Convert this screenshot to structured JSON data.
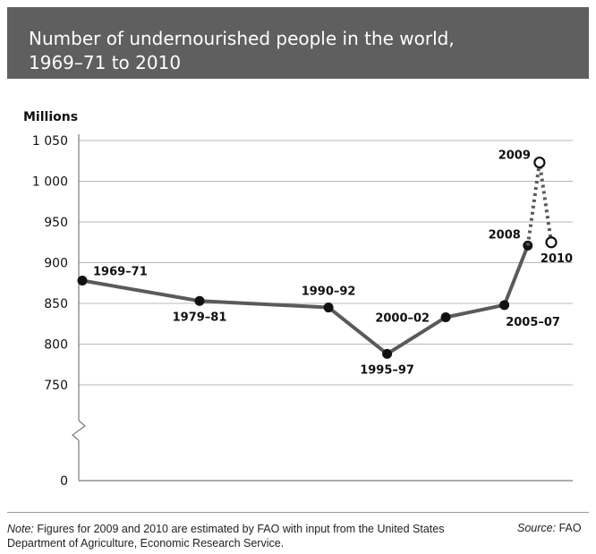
{
  "title": {
    "line1": "Number of undernourished people in the world,",
    "line2": "1969–71 to 2010"
  },
  "footer": {
    "note_lead": "Note:",
    "note_text": "Figures for 2009 and 2010 are estimated by FAO with input from the United States Department of Agriculture, Economic Research Service.",
    "source_lead": "Source:",
    "source_text": "FAO"
  },
  "colors": {
    "title_band": "#5f5f5f",
    "line": "#5a5a5a",
    "marker": "#111111",
    "grid": "#b8b8b8"
  },
  "chart_data": {
    "type": "line",
    "ylabel": "Millions",
    "yticks": [
      "0",
      "750",
      "800",
      "850",
      "900",
      "950",
      "1 000",
      "1 050"
    ],
    "ylim": [
      750,
      1050
    ],
    "axis_break": true,
    "grid": true,
    "series": [
      {
        "style": "solid",
        "points": [
          {
            "label": "1969–71",
            "year": 1970,
            "value": 878
          },
          {
            "label": "1979–81",
            "year": 1980,
            "value": 853
          },
          {
            "label": "1990–92",
            "year": 1991,
            "value": 845
          },
          {
            "label": "1995–97",
            "year": 1996,
            "value": 788
          },
          {
            "label": "2000–02",
            "year": 2001,
            "value": 833
          },
          {
            "label": "2005–07",
            "year": 2006,
            "value": 848
          },
          {
            "label": "2008",
            "year": 2008,
            "value": 921
          }
        ]
      },
      {
        "style": "dotted",
        "estimated": true,
        "points": [
          {
            "label": "2008",
            "year": 2008,
            "value": 921
          },
          {
            "label": "2009",
            "year": 2009,
            "value": 1023
          },
          {
            "label": "2010",
            "year": 2010,
            "value": 925
          }
        ]
      }
    ]
  }
}
